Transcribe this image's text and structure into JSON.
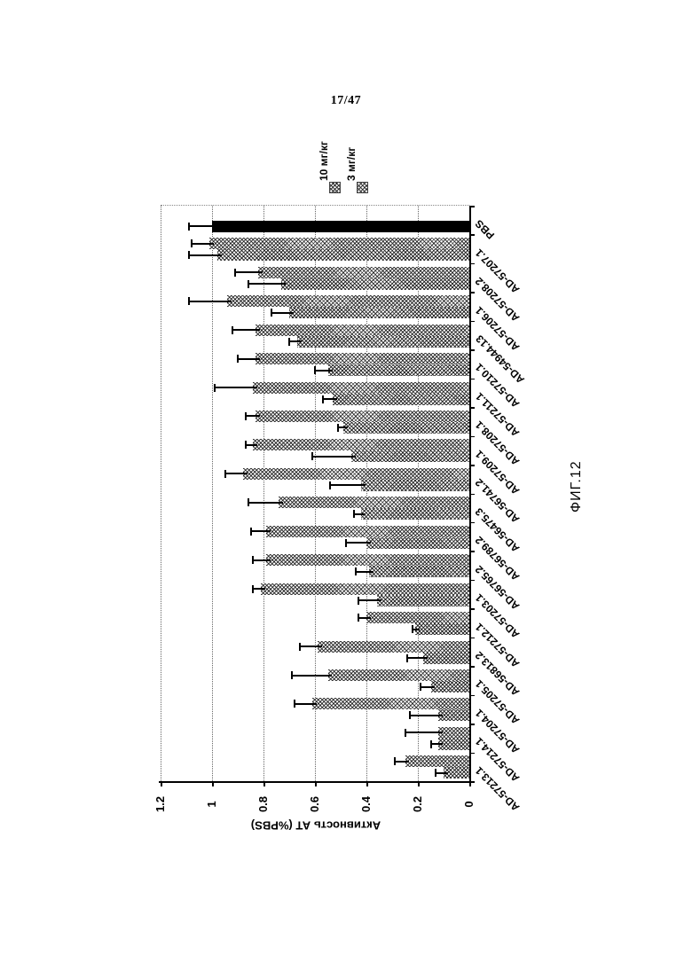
{
  "page": {
    "number": "17/47",
    "figure_label": "ФИГ.12"
  },
  "chart_data": {
    "type": "bar",
    "note": "grouped bar chart rotated 90deg CCW on page; bars extend left from zero axis at right",
    "title": "",
    "value_axis": {
      "label": "Активность АТ (%PBS)",
      "min": 0,
      "max": 1.2,
      "tick_step": 0.2,
      "ticks": [
        "1.2",
        "1",
        "0.8",
        "0.6",
        "0.4",
        "0.2",
        "0"
      ],
      "grid": "dotted"
    },
    "legend_position": "top",
    "categories": [
      "PBS",
      "AD-57207.1",
      "AD-57208.2",
      "AD-57206.1",
      "AD-54944.13",
      "AD-57210.1",
      "AD-57211.1",
      "AD-57208.1",
      "AD-57209.1",
      "AD-56741.2",
      "AD-56475.3",
      "AD-56789.2",
      "AD-56765.2",
      "AD-57203.1",
      "AD-57212.1",
      "AD-56813.2",
      "AD-57205.1",
      "AD-57204.1",
      "AD-57214.1",
      "AD-57213.1"
    ],
    "series": [
      {
        "name": "10 мг/кг",
        "values": [
          1.0,
          0.98,
          0.73,
          0.7,
          0.67,
          0.55,
          0.53,
          0.49,
          0.46,
          0.42,
          0.42,
          0.4,
          0.39,
          0.36,
          0.21,
          0.18,
          0.15,
          0.12,
          0.12,
          0.1
        ],
        "errors": [
          0.09,
          0.11,
          0.13,
          0.07,
          0.03,
          0.05,
          0.04,
          0.02,
          0.15,
          0.12,
          0.03,
          0.08,
          0.05,
          0.07,
          0.01,
          0.06,
          0.04,
          0.11,
          0.03,
          0.03
        ]
      },
      {
        "name": "3 мг/кг",
        "values": [
          null,
          1.01,
          0.82,
          0.94,
          0.83,
          0.83,
          0.84,
          0.83,
          0.84,
          0.88,
          0.74,
          0.79,
          0.79,
          0.81,
          0.4,
          0.59,
          0.55,
          0.61,
          0.12,
          0.25
        ],
        "errors": [
          null,
          0.07,
          0.09,
          0.15,
          0.09,
          0.07,
          0.15,
          0.04,
          0.03,
          0.07,
          0.12,
          0.06,
          0.05,
          0.03,
          0.03,
          0.07,
          0.14,
          0.07,
          0.13,
          0.04
        ]
      }
    ],
    "colors": {
      "pbs_bar": "#000000",
      "bar_pattern": "#333333",
      "gridline": "#666666",
      "axis": "#000000"
    }
  }
}
